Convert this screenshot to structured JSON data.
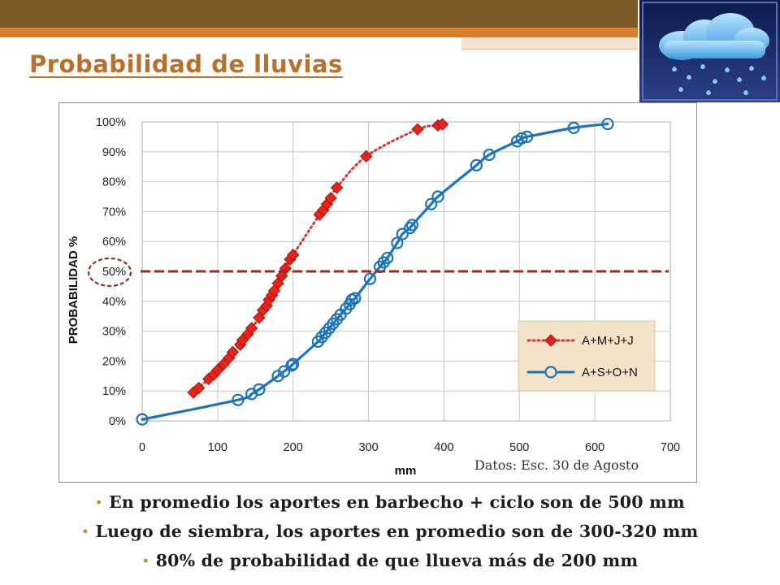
{
  "slide": {
    "title": "Probabilidad de lluvias",
    "source_note": "Datos: Esc. 30 de Agosto",
    "bullets": [
      "En promedio los aportes en barbecho + ciclo son de 500 mm",
      "Luego de siembra, los aportes en promedio son de 300-320 mm",
      "80% de probabilidad de que llueva más de 200 mm"
    ]
  },
  "colors": {
    "header_dark": "#7e5a29",
    "header_orange": "#d87f2e",
    "title": "#b8702a",
    "series_red": "#e8231a",
    "series_red_line": "#d83a2c",
    "series_blue": "#1e73be",
    "ref_line": "#9b2b1e",
    "grid": "#c8c8c8",
    "legend_bg": "#f3e4c8"
  },
  "chart_data": {
    "type": "line",
    "xlabel": "mm",
    "ylabel": "PROBABILIDAD %",
    "xlim": [
      0,
      700
    ],
    "ylim": [
      0,
      100
    ],
    "xticks": [
      "0",
      "100",
      "200",
      "300",
      "400",
      "500",
      "600",
      "700"
    ],
    "yticks": [
      "0%",
      "10%",
      "20%",
      "30%",
      "40%",
      "50%",
      "60%",
      "70%",
      "80%",
      "90%",
      "100%"
    ],
    "grid": true,
    "legend_position": "bottom-right",
    "reference_line_y": 50,
    "highlighted_tick": "50%",
    "series": [
      {
        "name": "A+M+J+J",
        "style": "dotted",
        "marker": "diamond",
        "color": "#e8231a",
        "points": [
          [
            68,
            9.5
          ],
          [
            75,
            11
          ],
          [
            88,
            14
          ],
          [
            95,
            15.5
          ],
          [
            100,
            17
          ],
          [
            108,
            19
          ],
          [
            115,
            21
          ],
          [
            120,
            23
          ],
          [
            130,
            25.5
          ],
          [
            133,
            27
          ],
          [
            140,
            29
          ],
          [
            145,
            31
          ],
          [
            155,
            34.5
          ],
          [
            160,
            37
          ],
          [
            165,
            38.5
          ],
          [
            168,
            40.5
          ],
          [
            172,
            42
          ],
          [
            175,
            43.5
          ],
          [
            180,
            46
          ],
          [
            185,
            48.5
          ],
          [
            190,
            51
          ],
          [
            196,
            54
          ],
          [
            200,
            55.5
          ],
          [
            235,
            69
          ],
          [
            240,
            70.5
          ],
          [
            245,
            72.5
          ],
          [
            250,
            74.5
          ],
          [
            258,
            78
          ],
          [
            297,
            88.5
          ],
          [
            365,
            97.5
          ],
          [
            392,
            98.8
          ],
          [
            398,
            99.2
          ]
        ]
      },
      {
        "name": "A+S+O+N",
        "style": "solid",
        "marker": "circle",
        "color": "#1e73be",
        "points": [
          [
            0,
            0.5
          ],
          [
            127,
            7
          ],
          [
            145,
            9
          ],
          [
            155,
            10.5
          ],
          [
            180,
            15
          ],
          [
            188,
            16.5
          ],
          [
            198,
            18.5
          ],
          [
            200,
            19
          ],
          [
            233,
            26.5
          ],
          [
            238,
            28
          ],
          [
            243,
            29.5
          ],
          [
            248,
            31
          ],
          [
            253,
            32.5
          ],
          [
            258,
            34
          ],
          [
            263,
            35.5
          ],
          [
            270,
            37.5
          ],
          [
            275,
            39
          ],
          [
            278,
            40.5
          ],
          [
            282,
            41
          ],
          [
            302,
            47.5
          ],
          [
            315,
            51.5
          ],
          [
            320,
            53
          ],
          [
            325,
            54.5
          ],
          [
            338,
            59.5
          ],
          [
            345,
            62.5
          ],
          [
            355,
            64.5
          ],
          [
            358,
            65.5
          ],
          [
            383,
            72.5
          ],
          [
            392,
            75
          ],
          [
            443,
            85.5
          ],
          [
            460,
            89
          ],
          [
            497,
            93.5
          ],
          [
            503,
            94.5
          ],
          [
            510,
            95
          ],
          [
            572,
            98
          ],
          [
            617,
            99.3
          ]
        ]
      }
    ]
  }
}
